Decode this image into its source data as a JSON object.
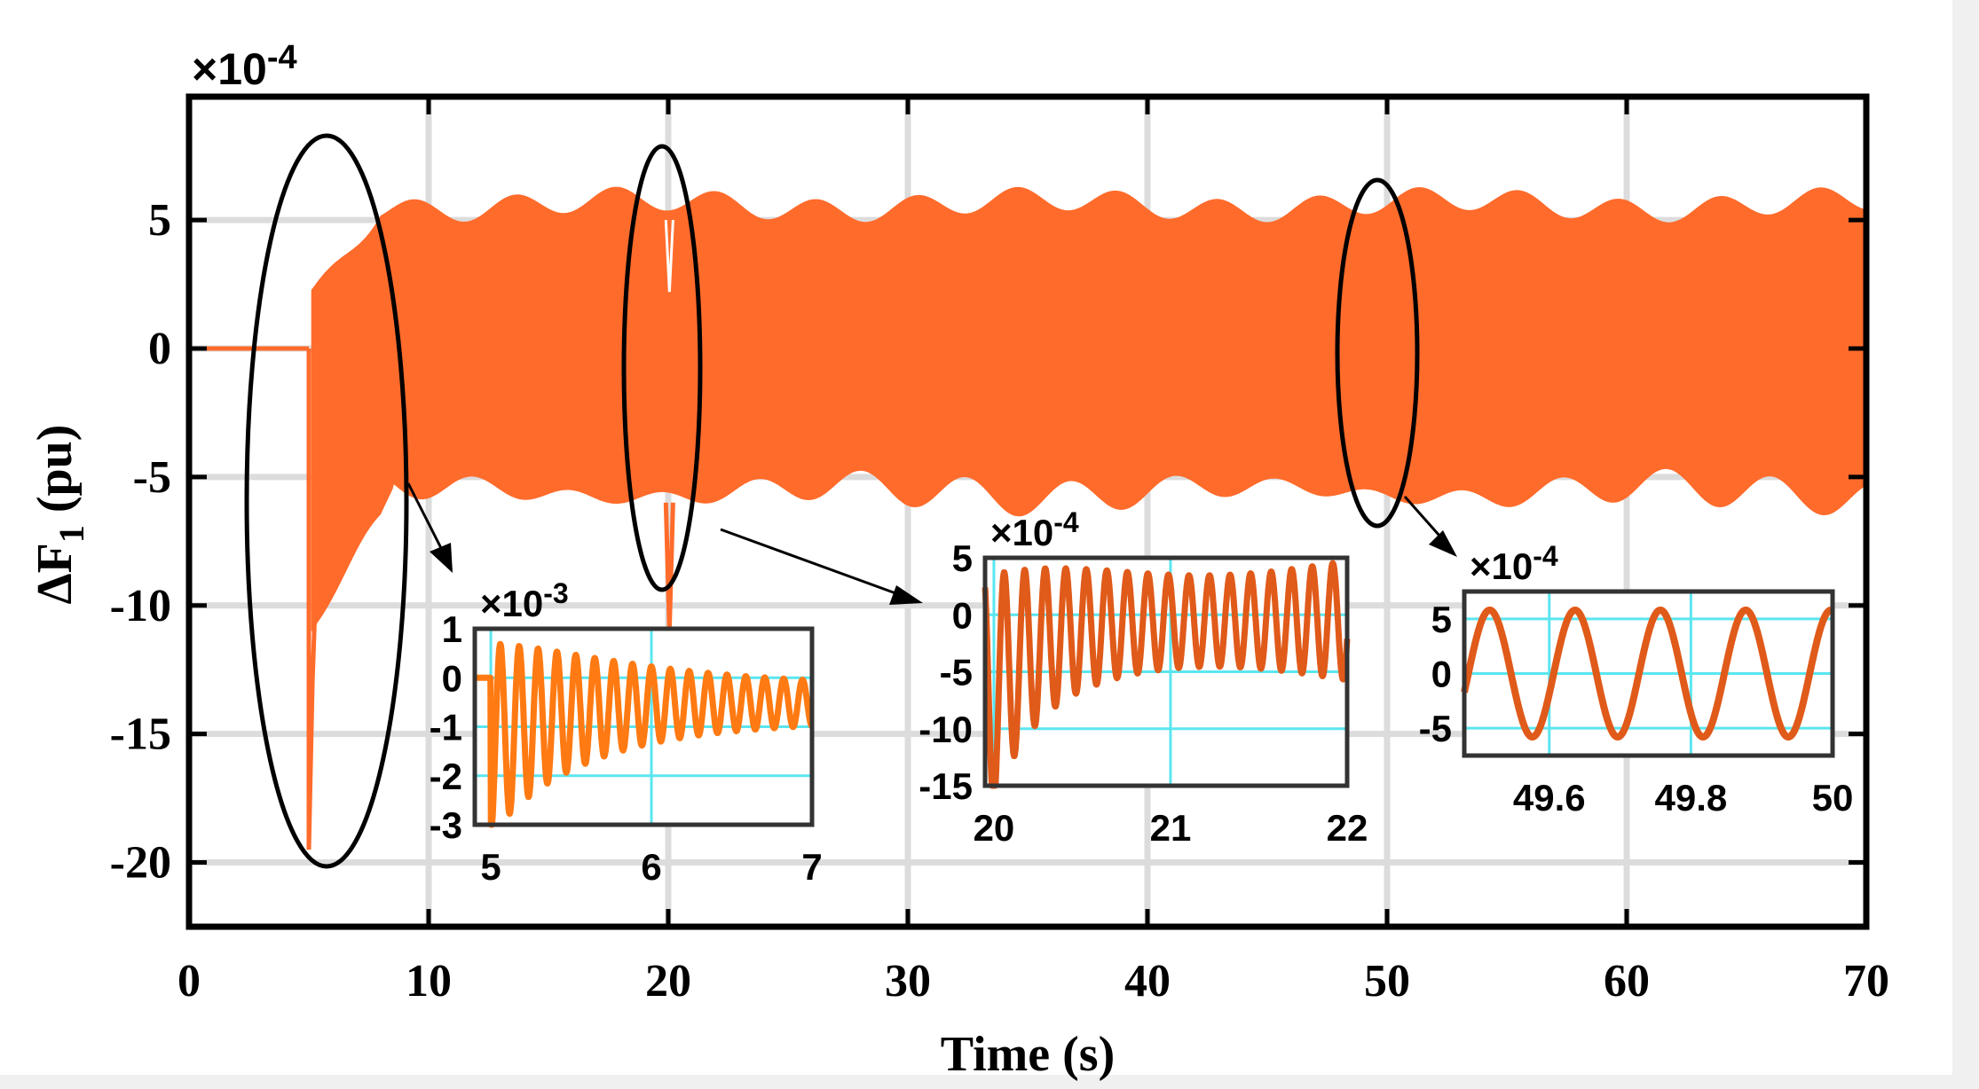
{
  "chart_data": [
    {
      "type": "line",
      "title": "",
      "xlabel": "Time (s)",
      "ylabel_main": "ΔF",
      "ylabel_sub": "1",
      "ylabel_unit": " (pu)",
      "exponent_prefix": "×10",
      "exponent_power": "-4",
      "xlim": [
        0,
        70
      ],
      "ylim": [
        -22.5,
        9.8
      ],
      "xticks": [
        0,
        10,
        20,
        30,
        40,
        50,
        60,
        70
      ],
      "yticks": [
        5,
        0,
        -5,
        -10,
        -15,
        -20
      ],
      "grid": true,
      "series": [
        {
          "name": "ΔF1",
          "color": "#ff6b2b",
          "description_values": {
            "step_time": 5,
            "initial_value": 0,
            "first_dip": -19.5,
            "steady_amplitude": 5.8,
            "disturbance_time": 20,
            "second_dip": -11
          }
        }
      ]
    },
    {
      "type": "line",
      "xlim": [
        4.9,
        7
      ],
      "ylim": [
        -3,
        1
      ],
      "xticks": [
        5,
        6,
        7
      ],
      "yticks": [
        1,
        0,
        -1,
        -2,
        -3
      ],
      "exponent_prefix": "×10",
      "exponent_power": "-3",
      "color": "#ff7a12",
      "grid_color": "#5ae6f0"
    },
    {
      "type": "line",
      "xlim": [
        19.95,
        22
      ],
      "ylim": [
        -15,
        5
      ],
      "xticks": [
        20,
        21,
        22
      ],
      "yticks": [
        5,
        0,
        -5,
        -10,
        -15
      ],
      "exponent_prefix": "×10",
      "exponent_power": "-4",
      "color": "#e05a1a",
      "grid_color": "#5ae6f0"
    },
    {
      "type": "line",
      "xlim": [
        49.48,
        50
      ],
      "ylim": [
        -7.5,
        7.5
      ],
      "xticks": [
        49.6,
        49.8,
        50
      ],
      "yticks": [
        5,
        0,
        -5
      ],
      "exponent_prefix": "×10",
      "exponent_power": "-4",
      "color": "#e05a1a",
      "grid_color": "#5ae6f0"
    }
  ]
}
